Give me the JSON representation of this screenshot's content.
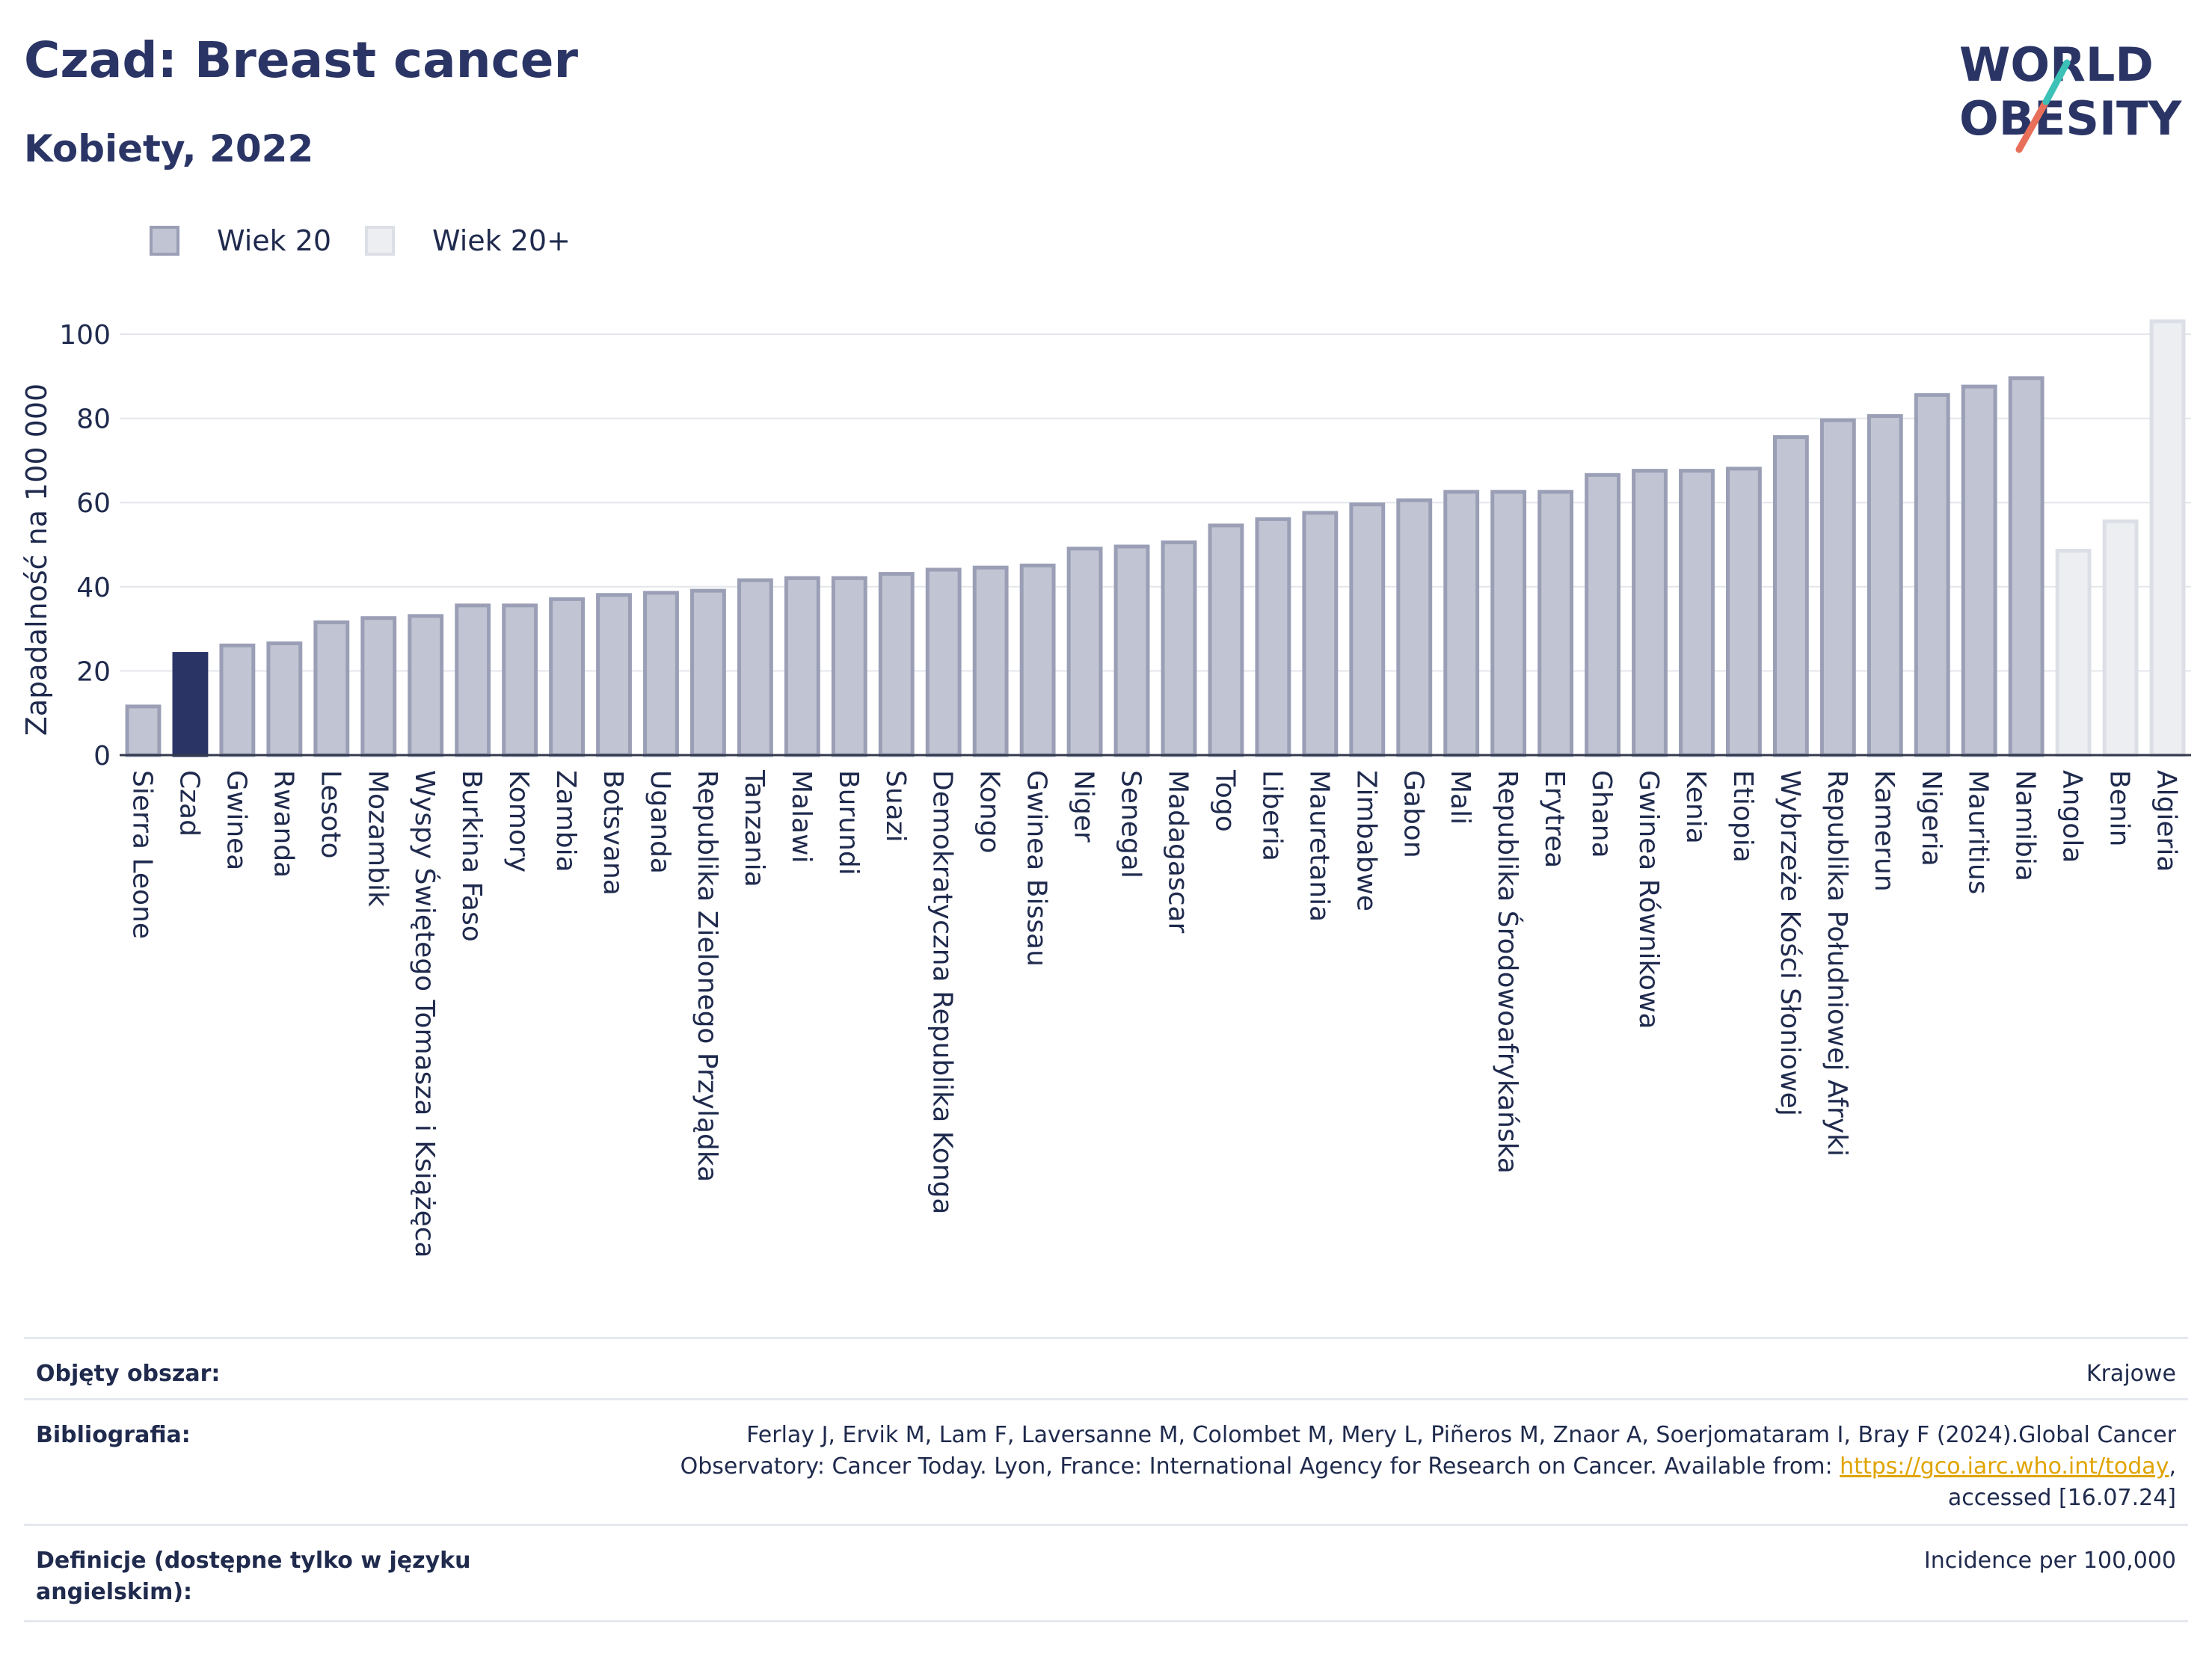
{
  "header": {
    "title": "Czad: Breast cancer",
    "subtitle": "Kobiety, 2022"
  },
  "logo": {
    "line1": "WORLD",
    "line2": "OBESITY"
  },
  "colors": {
    "highlight": "#2a3566",
    "bar_fill": "#c1c4d2",
    "bar_stroke": "#9a9fb6",
    "bar20p_fill": "#eceef2",
    "bar20p_stroke": "#dcdfe6",
    "grid": "#e4e6ec",
    "axis": "#333a4d"
  },
  "legend": [
    {
      "label": "Wiek 20",
      "swatch": "age20"
    },
    {
      "label": "Wiek 20+",
      "swatch": "age20plus"
    }
  ],
  "chart_data": {
    "type": "bar",
    "ylabel": "Zapadalność na 100 000",
    "ylim": [
      0,
      105
    ],
    "yticks": [
      0,
      20,
      40,
      60,
      80,
      100
    ],
    "grid": true,
    "legend_placement": "top-left",
    "highlight_category": "Czad",
    "categories": [
      "Sierra Leone",
      "Czad",
      "Gwinea",
      "Rwanda",
      "Lesoto",
      "Mozambik",
      "Wyspy Świętego Tomasza i Książęca",
      "Burkina Faso",
      "Komory",
      "Zambia",
      "Botsvana",
      "Uganda",
      "Republika Zielonego Przylądka",
      "Tanzania",
      "Malawi",
      "Burundi",
      "Suazi",
      "Demokratyczna Republika Konga",
      "Kongo",
      "Gwinea Bissau",
      "Niger",
      "Senegal",
      "Madagascar",
      "Togo",
      "Liberia",
      "Mauretania",
      "Zimbabwe",
      "Gabon",
      "Mali",
      "Republika Środowoafrykańska",
      "Erytrea",
      "Ghana",
      "Gwinea Równikowa",
      "Kenia",
      "Etiopia",
      "Wybrzeże Kości Słoniowej",
      "Republika Południowej Afryki",
      "Kamerun",
      "Nigeria",
      "Mauritius",
      "Namibia",
      "Angola",
      "Benin",
      "Algieria"
    ],
    "series": [
      {
        "name": "Wiek 20",
        "values": [
          12,
          24.5,
          26.5,
          27,
          32,
          33,
          33.5,
          36,
          36,
          37.5,
          38.5,
          39,
          39.5,
          42,
          42.5,
          42.5,
          43.5,
          44.5,
          45,
          45.5,
          49.5,
          50,
          51,
          55,
          56.5,
          58,
          60,
          61,
          63,
          63,
          63,
          67,
          68,
          68,
          68.5,
          76,
          80,
          81,
          86,
          88,
          90,
          null,
          null,
          null
        ]
      },
      {
        "name": "Wiek 20+",
        "values": [
          null,
          null,
          null,
          null,
          null,
          null,
          null,
          null,
          null,
          null,
          null,
          null,
          null,
          null,
          null,
          null,
          null,
          null,
          null,
          null,
          null,
          null,
          null,
          null,
          null,
          null,
          null,
          null,
          null,
          null,
          null,
          null,
          null,
          null,
          null,
          null,
          null,
          null,
          null,
          null,
          null,
          49,
          56,
          103.5
        ]
      }
    ]
  },
  "metadata": [
    {
      "key": "Objęty obszar:",
      "value": "Krajowe"
    },
    {
      "key": "Bibliografia:",
      "value_before": "Ferlay J, Ervik M, Lam F, Laversanne M, Colombet M, Mery L, Piñeros M, Znaor A, Soerjomataram I, Bray F (2024).Global Cancer Observatory: Cancer Today. Lyon, France: International Agency for Research on Cancer. Available from: ",
      "link": "https://gco.iarc.who.int/today",
      "value_after": ", accessed [16.07.24]"
    },
    {
      "key": "Definicje (dostępne tylko w języku angielskim):",
      "value": "Incidence per 100,000"
    }
  ]
}
